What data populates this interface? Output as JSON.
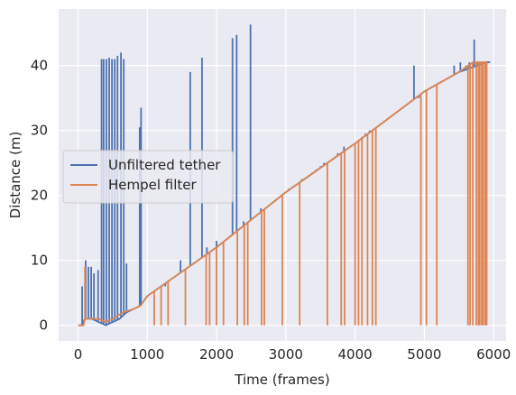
{
  "chart_data": {
    "type": "line",
    "xlabel": "Time (frames)",
    "ylabel": "Distance (m)",
    "xlim": [
      -280,
      6180
    ],
    "ylim": [
      -2.4,
      48.7
    ],
    "xticks": [
      0,
      1000,
      2000,
      3000,
      4000,
      5000,
      6000
    ],
    "yticks": [
      0,
      10,
      20,
      30,
      40
    ],
    "grid": true,
    "legend_position": "center-left",
    "colors": {
      "background": "#eaeaf2",
      "grid": "#ffffff",
      "text": "#262626"
    },
    "series": [
      {
        "name": "Unfiltered tether",
        "color": "#4c72b0",
        "trend": [
          [
            0,
            0
          ],
          [
            50,
            0
          ],
          [
            100,
            1
          ],
          [
            200,
            1
          ],
          [
            400,
            0
          ],
          [
            600,
            1
          ],
          [
            700,
            2
          ],
          [
            900,
            3
          ],
          [
            1000,
            4.5
          ],
          [
            2000,
            12
          ],
          [
            3000,
            20.5
          ],
          [
            4000,
            28
          ],
          [
            5000,
            36
          ],
          [
            5500,
            39
          ],
          [
            5900,
            40.5
          ],
          [
            5950,
            40.5
          ]
        ],
        "spikes": [
          [
            60,
            6
          ],
          [
            110,
            10
          ],
          [
            150,
            9
          ],
          [
            190,
            9
          ],
          [
            230,
            8
          ],
          [
            290,
            8.5
          ],
          [
            340,
            41
          ],
          [
            370,
            41
          ],
          [
            410,
            41
          ],
          [
            450,
            41.2
          ],
          [
            490,
            41
          ],
          [
            530,
            41
          ],
          [
            570,
            41.5
          ],
          [
            620,
            42
          ],
          [
            660,
            41
          ],
          [
            700,
            9.5
          ],
          [
            890,
            30.5
          ],
          [
            910,
            33.5
          ],
          [
            1100,
            5
          ],
          [
            1260,
            6
          ],
          [
            1480,
            10
          ],
          [
            1620,
            39
          ],
          [
            1790,
            41.2
          ],
          [
            1860,
            12
          ],
          [
            2000,
            13
          ],
          [
            2230,
            44.2
          ],
          [
            2290,
            44.7
          ],
          [
            2390,
            16
          ],
          [
            2490,
            46.3
          ],
          [
            2640,
            18
          ],
          [
            2840,
            19
          ],
          [
            3040,
            21
          ],
          [
            3230,
            22.5
          ],
          [
            3440,
            24
          ],
          [
            3500,
            24.5
          ],
          [
            3550,
            25
          ],
          [
            3750,
            26.5
          ],
          [
            3840,
            27.5
          ],
          [
            3990,
            28
          ],
          [
            4100,
            29
          ],
          [
            4150,
            29.5
          ],
          [
            4210,
            30
          ],
          [
            4380,
            31
          ],
          [
            4800,
            34.5
          ],
          [
            4850,
            40
          ],
          [
            4920,
            35
          ],
          [
            5000,
            36
          ],
          [
            5150,
            37
          ],
          [
            5400,
            38.5
          ],
          [
            5430,
            40
          ],
          [
            5520,
            40.5
          ],
          [
            5600,
            40
          ],
          [
            5650,
            40.5
          ],
          [
            5700,
            40.3
          ],
          [
            5720,
            44
          ],
          [
            5760,
            40.5
          ],
          [
            5800,
            40.5
          ],
          [
            5850,
            40.5
          ],
          [
            5880,
            40.5
          ],
          [
            5920,
            40.5
          ]
        ]
      },
      {
        "name": "Hempel filter",
        "color": "#dd8452",
        "trend": [
          [
            0,
            0
          ],
          [
            80,
            0
          ],
          [
            100,
            1
          ],
          [
            300,
            1
          ],
          [
            400,
            0.5
          ],
          [
            500,
            1
          ],
          [
            650,
            2
          ],
          [
            800,
            2.5
          ],
          [
            900,
            3
          ],
          [
            1000,
            4.5
          ],
          [
            2000,
            12
          ],
          [
            3000,
            20.5
          ],
          [
            4000,
            28
          ],
          [
            5000,
            36
          ],
          [
            5500,
            39
          ],
          [
            5700,
            40.5
          ],
          [
            5900,
            40.5
          ]
        ],
        "spikes": [
          [
            100,
            9
          ],
          [
            1100,
            0
          ],
          [
            1200,
            0
          ],
          [
            1300,
            0
          ],
          [
            1450,
            8
          ],
          [
            1550,
            0
          ],
          [
            1850,
            0
          ],
          [
            1900,
            0
          ],
          [
            2000,
            0
          ],
          [
            2100,
            0
          ],
          [
            2300,
            0
          ],
          [
            2400,
            0
          ],
          [
            2450,
            0
          ],
          [
            2650,
            0
          ],
          [
            2690,
            0
          ],
          [
            2950,
            0
          ],
          [
            3200,
            0
          ],
          [
            3600,
            0
          ],
          [
            3800,
            0
          ],
          [
            3850,
            0
          ],
          [
            4000,
            0
          ],
          [
            4050,
            0
          ],
          [
            4100,
            0
          ],
          [
            4180,
            0
          ],
          [
            4250,
            0
          ],
          [
            4300,
            0
          ],
          [
            4950,
            0
          ],
          [
            5030,
            0
          ],
          [
            5180,
            0
          ],
          [
            5630,
            0
          ],
          [
            5660,
            0
          ],
          [
            5700,
            0
          ],
          [
            5750,
            0
          ],
          [
            5780,
            0
          ],
          [
            5800,
            0
          ],
          [
            5830,
            0
          ],
          [
            5850,
            0
          ],
          [
            5880,
            0
          ],
          [
            5900,
            0
          ]
        ]
      }
    ]
  }
}
